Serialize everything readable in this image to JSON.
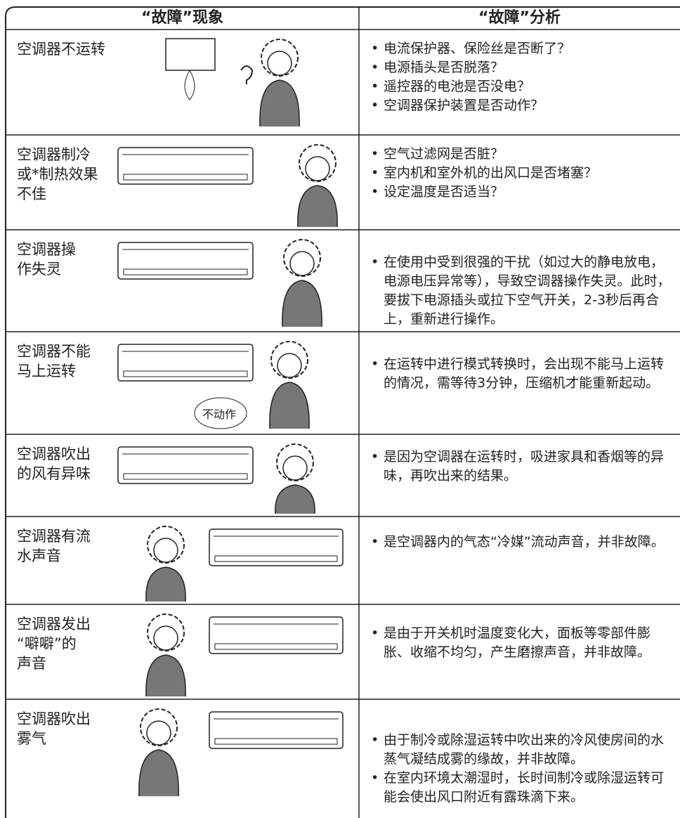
{
  "header": {
    "symptom": "“故障”现象",
    "analysis": "“故障”分析"
  },
  "rows": [
    {
      "symptom": [
        "空调器不运转"
      ],
      "bullets": [
        "电流保护器、保险丝是否断了？",
        "电源插头是否脱落？",
        "遥控器的电池是否没电？",
        "空调器保护装置是否动作？"
      ]
    },
    {
      "symptom": [
        "空调器制冷",
        "或*制热效果",
        "不佳"
      ],
      "bullets": [
        "空气过滤网是否脏？",
        "室内机和室外机的出风口是否堵塞？",
        "设定温度是否适当？"
      ]
    },
    {
      "symptom": [
        "空调器操",
        "作失灵"
      ],
      "bullets": [
        "在使用中受到很强的干扰（如过大的静电放电，电源电压异常等），导致空调器操作失灵。此时，要拔下电源插头或拉下空气开关，2-3秒后再合上，重新进行操作。"
      ]
    },
    {
      "symptom": [
        "空调器不能",
        "马上运转"
      ],
      "callout": "不动作",
      "bullets": [
        "在运转中进行模式转换时，会出现不能马上运转的情况，需等待3分钟，压缩机才能重新起动。"
      ]
    },
    {
      "symptom": [
        "空调器吹出",
        "的风有异味"
      ],
      "bullets": [
        "是因为空调器在运转时，吸进家具和香烟等的异味，再吹出来的结果。"
      ]
    },
    {
      "symptom": [
        "空调器有流",
        "水声音"
      ],
      "bullets": [
        "是空调器内的气态“冷媒”流动声音，并非故障。"
      ]
    },
    {
      "symptom": [
        "空调器发出",
        "“噼噼”的",
        "声音"
      ],
      "bullets": [
        "是由于开关机时温度变化大，面板等零部件膨胀、收缩不均匀，产生磨擦声音，并非故障。"
      ]
    },
    {
      "symptom": [
        "空调器吹出",
        "雾气"
      ],
      "bullets": [
        "由于制冷或除湿运转中吹出来的冷风使房间的水蒸气凝结成雾的缘故，并非故障。",
        "在室内环境太潮湿时，长时间制冷或除湿运转可能会使出风口附近有露珠滴下来。"
      ]
    }
  ]
}
